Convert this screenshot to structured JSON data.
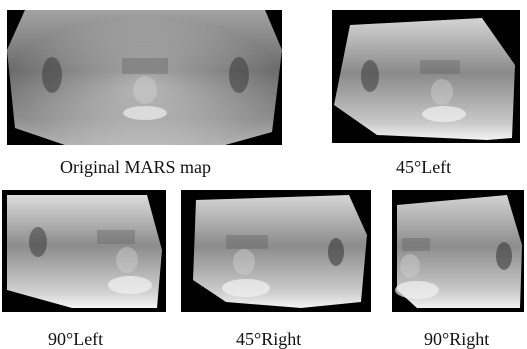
{
  "figure": {
    "panels": [
      {
        "id": "original",
        "caption": "Original MARS map",
        "view": "original"
      },
      {
        "id": "left45",
        "caption": "45°Left",
        "view": "left-45"
      },
      {
        "id": "left90",
        "caption": "90°Left",
        "view": "left-90"
      },
      {
        "id": "right45",
        "caption": "45°Right",
        "view": "right-45"
      },
      {
        "id": "right90",
        "caption": "90°Right",
        "view": "right-90"
      }
    ],
    "colors": {
      "background": "#000000",
      "face_light": "#e6e6e6",
      "face_mid": "#9a9a9a",
      "face_dark": "#4a4a4a"
    }
  }
}
